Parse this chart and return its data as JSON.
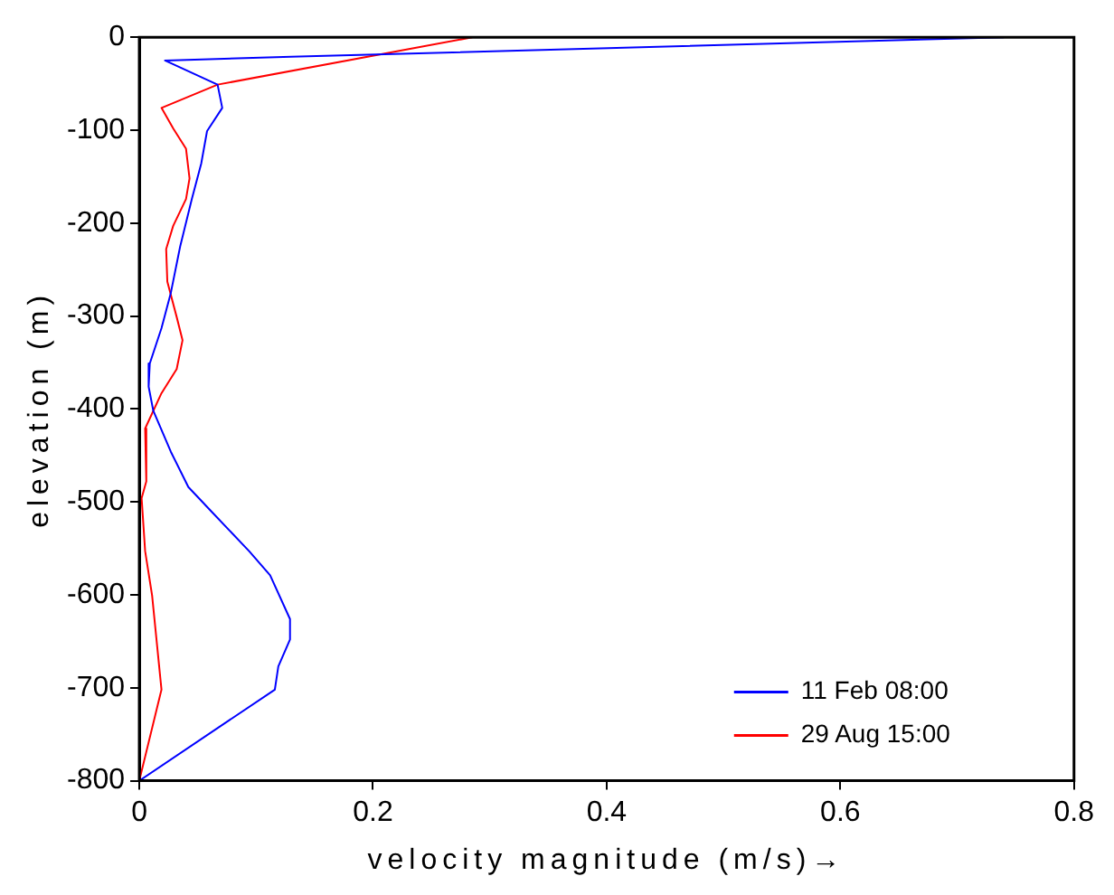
{
  "chart_data": {
    "type": "line",
    "xlabel": "velocity magnitude (m/s)→",
    "ylabel": "elevation (m)",
    "xlim": [
      0,
      0.8
    ],
    "xticks": [
      0,
      0.2,
      0.4,
      0.6,
      0.8
    ],
    "ylim": [
      -800,
      0
    ],
    "yticks": [
      -800,
      -700,
      -600,
      -500,
      -400,
      -300,
      -200,
      -100,
      0
    ],
    "grid": false,
    "legend": "bottom right",
    "marker": "none",
    "line_style": "solid",
    "series": [
      {
        "name": "11 Feb 08:00",
        "color": "#0000ff",
        "x": [
          0.74,
          0.13,
          0.022,
          0.067,
          0.071,
          0.058,
          0.053,
          0.045,
          0.035,
          0.027,
          0.019,
          0.009,
          0.008,
          0.012,
          0.027,
          0.042,
          0.063,
          0.094,
          0.112,
          0.129,
          0.129,
          0.119,
          0.116,
          0
        ],
        "values": [
          0,
          -21,
          -25,
          -51,
          -76,
          -101,
          -136,
          -174,
          -225,
          -275,
          -313,
          -351,
          -376,
          -402,
          -446,
          -484,
          -512,
          -553,
          -579,
          -626,
          -648,
          -677,
          -702,
          -800
        ]
      },
      {
        "name": "29 Aug 15:00",
        "color": "#ff0000",
        "x": [
          0.285,
          0.067,
          0.019,
          0.029,
          0.04,
          0.043,
          0.04,
          0.029,
          0.023,
          0.024,
          0.032,
          0.037,
          0.032,
          0.019,
          0.005,
          0.006,
          0.002,
          0.005,
          0.011,
          0.019,
          0
        ],
        "values": [
          0,
          -51,
          -76,
          -98,
          -120,
          -152,
          -174,
          -203,
          -228,
          -263,
          -301,
          -326,
          -357,
          -383,
          -421,
          -478,
          -496,
          -553,
          -601,
          -702,
          -800
        ]
      }
    ]
  }
}
